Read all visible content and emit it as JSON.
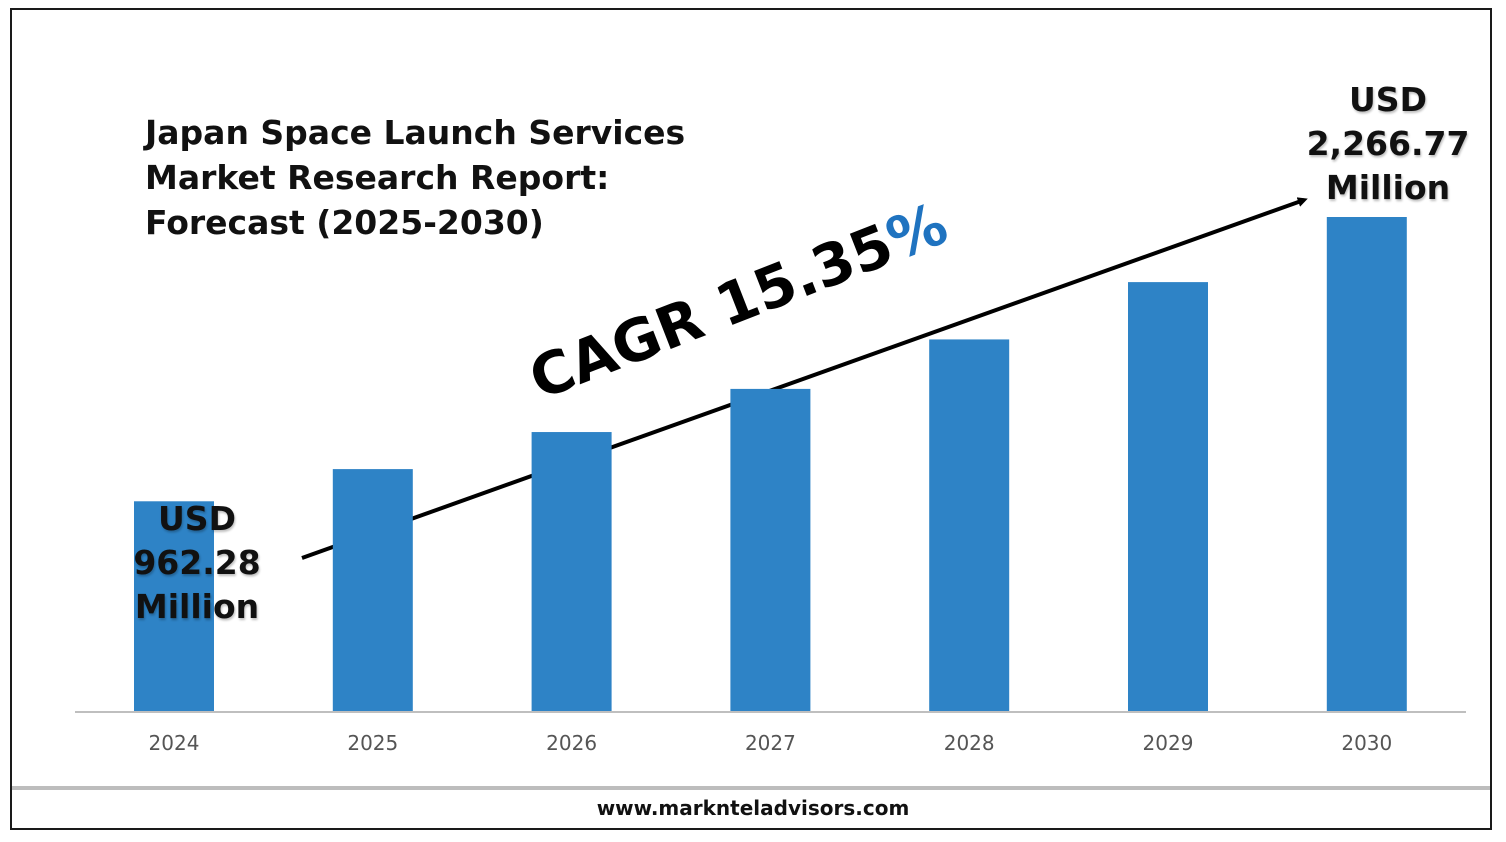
{
  "title_lines": [
    "Japan Space Launch Services",
    "Market Research Report:",
    "Forecast (2025-2030)"
  ],
  "cagr": {
    "prefix": "CAGR 15.35",
    "suffix": "%"
  },
  "start_label": {
    "line1": "USD",
    "line2": "962.28",
    "line3": "Million"
  },
  "end_label": {
    "line1": "USD",
    "line2": "2,266.77",
    "line3": "Million"
  },
  "footer": "www.marknteladvisors.com",
  "colors": {
    "bar": "#2e83c6",
    "accent": "#1f73c0",
    "axis": "#bfbfbf",
    "tick": "#555555"
  },
  "chart_data": {
    "type": "bar",
    "title": "Japan Space Launch Services Market Research Report: Forecast (2025-2030)",
    "categories": [
      "2024",
      "2025",
      "2026",
      "2027",
      "2028",
      "2029",
      "2030"
    ],
    "values": [
      962.28,
      1110,
      1280,
      1478,
      1705,
      1968,
      2266.77
    ],
    "annotations": [
      "USD 962.28 Million",
      "USD 2,266.77 Million",
      "CAGR 15.35%"
    ],
    "xlabel": "",
    "ylabel": "",
    "grid": false,
    "legend": "none"
  }
}
